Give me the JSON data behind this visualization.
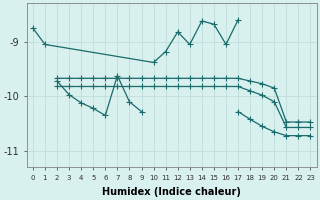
{
  "xlabel": "Humidex (Indice chaleur)",
  "background_color": "#d8f0ee",
  "grid_color": "#c0dedd",
  "line_color": "#1a6b6b",
  "ylim": [
    -11.3,
    -8.3
  ],
  "yticks": [
    -9,
    -10,
    -11
  ],
  "xlim": [
    -0.5,
    23.5
  ],
  "top_x": [
    0,
    1,
    10,
    11,
    12,
    13,
    14,
    15,
    16,
    17
  ],
  "top_y": [
    -8.75,
    -9.05,
    -9.38,
    -9.18,
    -8.82,
    -9.05,
    -8.62,
    -8.68,
    -9.05,
    -8.6
  ],
  "upper_x": [
    2,
    3,
    4,
    5,
    6,
    7,
    8,
    9,
    10,
    11,
    12,
    13,
    14,
    15,
    16,
    17,
    18,
    19,
    20,
    21,
    22,
    23
  ],
  "upper_y": [
    -9.67,
    -9.67,
    -9.67,
    -9.67,
    -9.67,
    -9.67,
    -9.67,
    -9.67,
    -9.67,
    -9.67,
    -9.67,
    -9.67,
    -9.67,
    -9.67,
    -9.67,
    -9.67,
    -9.72,
    -9.77,
    -9.85,
    -10.47,
    -10.47,
    -10.47
  ],
  "lower_x": [
    2,
    3,
    4,
    5,
    6,
    7,
    8,
    9,
    10,
    11,
    12,
    13,
    14,
    15,
    16,
    17,
    18,
    19,
    20,
    21,
    22,
    23
  ],
  "lower_y": [
    -9.82,
    -9.82,
    -9.82,
    -9.82,
    -9.82,
    -9.82,
    -9.82,
    -9.82,
    -9.82,
    -9.82,
    -9.82,
    -9.82,
    -9.82,
    -9.82,
    -9.82,
    -9.82,
    -9.9,
    -9.98,
    -10.1,
    -10.57,
    -10.57,
    -10.57
  ],
  "bot_x": [
    2,
    3,
    4,
    5,
    6,
    7,
    8,
    9,
    17,
    18,
    19,
    20,
    21,
    22,
    23
  ],
  "bot_y": [
    -9.72,
    -9.97,
    -10.12,
    -10.22,
    -10.35,
    -9.62,
    -10.1,
    -10.28,
    -10.28,
    -10.42,
    -10.55,
    -10.65,
    -10.72,
    -10.72,
    -10.72
  ]
}
